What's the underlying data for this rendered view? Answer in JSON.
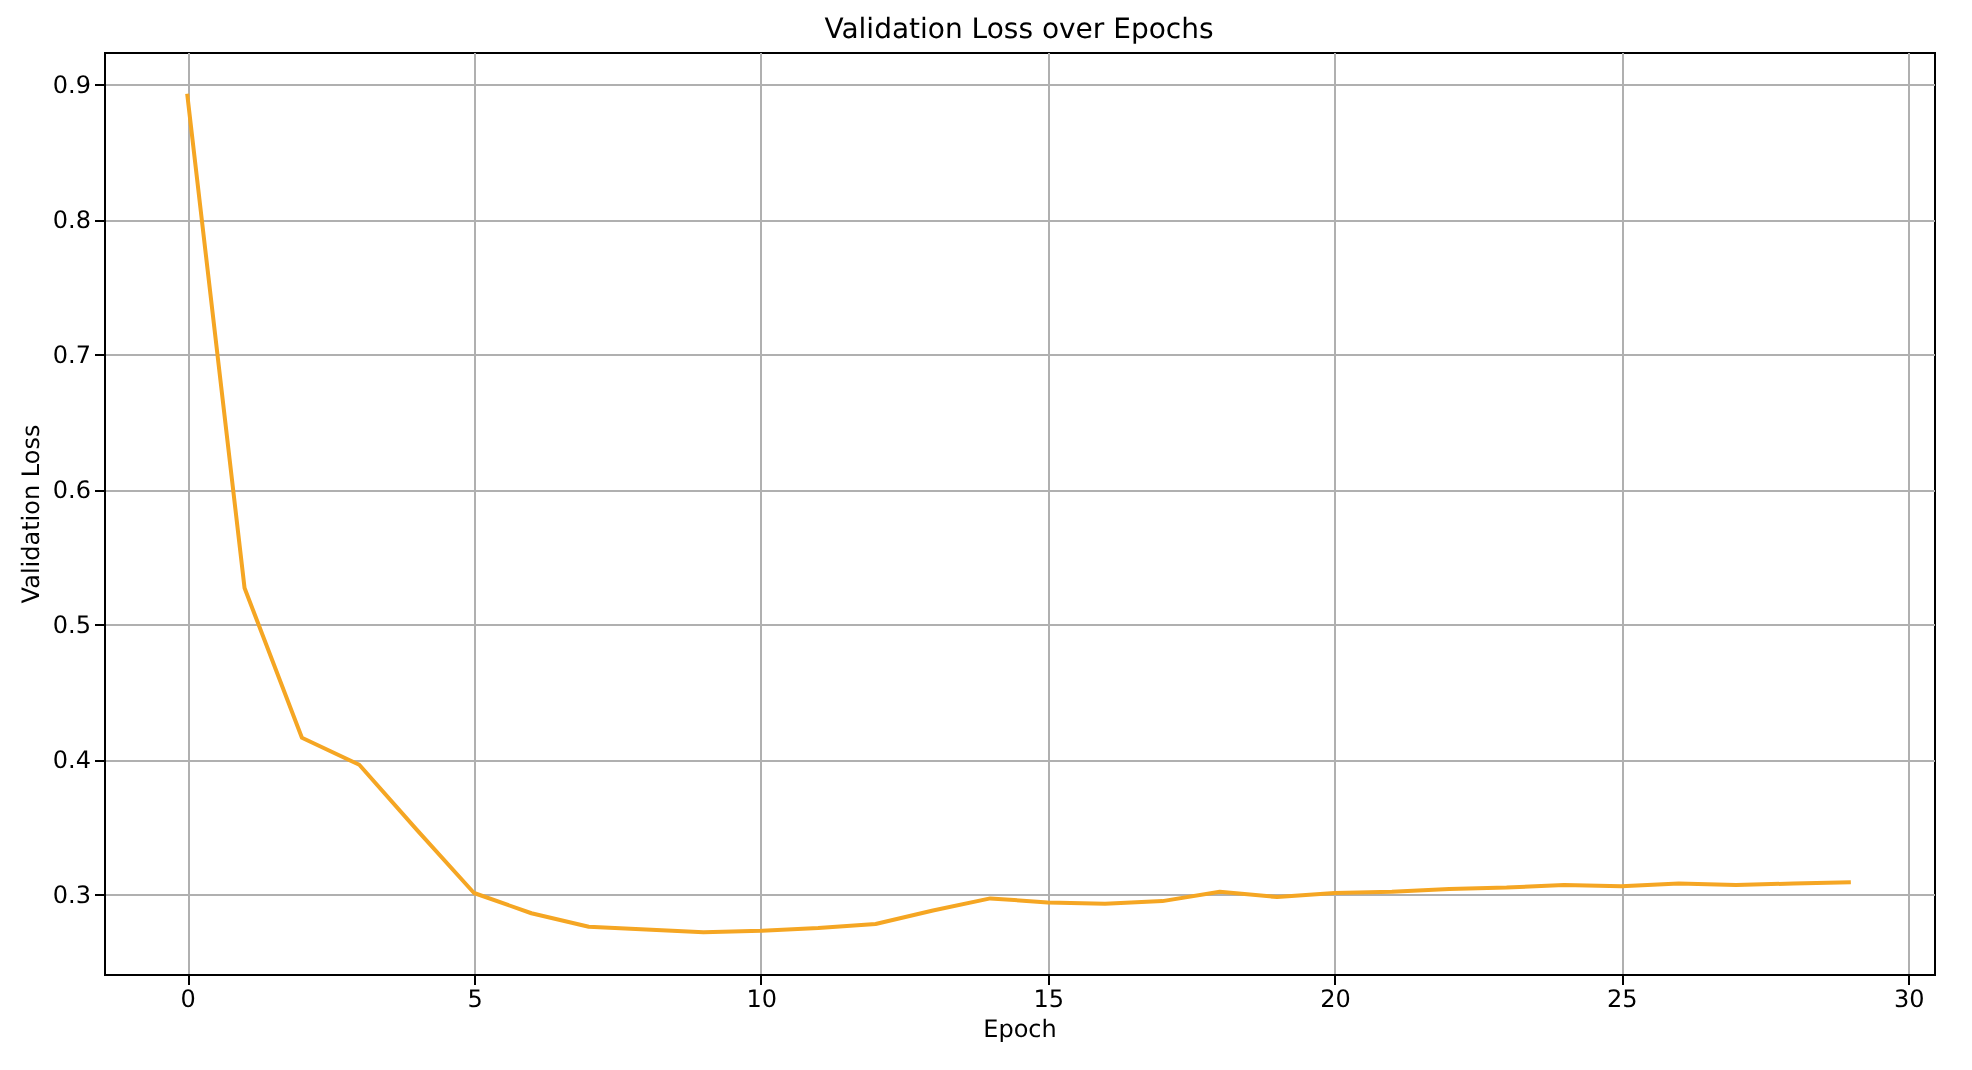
{
  "chart_data": {
    "type": "line",
    "title": "Validation Loss over Epochs",
    "xlabel": "Epoch",
    "ylabel": "Validation Loss",
    "x": [
      0,
      1,
      2,
      3,
      4,
      5,
      6,
      7,
      8,
      9,
      10,
      11,
      12,
      13,
      14,
      15,
      16,
      17,
      18,
      19,
      20,
      21,
      22,
      23,
      24,
      25,
      26,
      27,
      28,
      29
    ],
    "series": [
      {
        "color": "#f5a623",
        "values": [
          0.893,
          0.527,
          0.416,
          0.396,
          0.348,
          0.301,
          0.286,
          0.276,
          0.274,
          0.272,
          0.273,
          0.275,
          0.278,
          0.288,
          0.297,
          0.294,
          0.293,
          0.295,
          0.302,
          0.298,
          0.301,
          0.302,
          0.304,
          0.305,
          0.307,
          0.306,
          0.308,
          0.307,
          0.308,
          0.309
        ]
      }
    ],
    "xlim": [
      -1.45,
      30.45
    ],
    "xticks": [
      0,
      5,
      10,
      15,
      20,
      25,
      30
    ],
    "ylim": [
      0.241,
      0.924
    ],
    "yticks": [
      0.3,
      0.4,
      0.5,
      0.6,
      0.7,
      0.8,
      0.9
    ],
    "grid": true,
    "marker": "none",
    "line_style": "solid"
  }
}
